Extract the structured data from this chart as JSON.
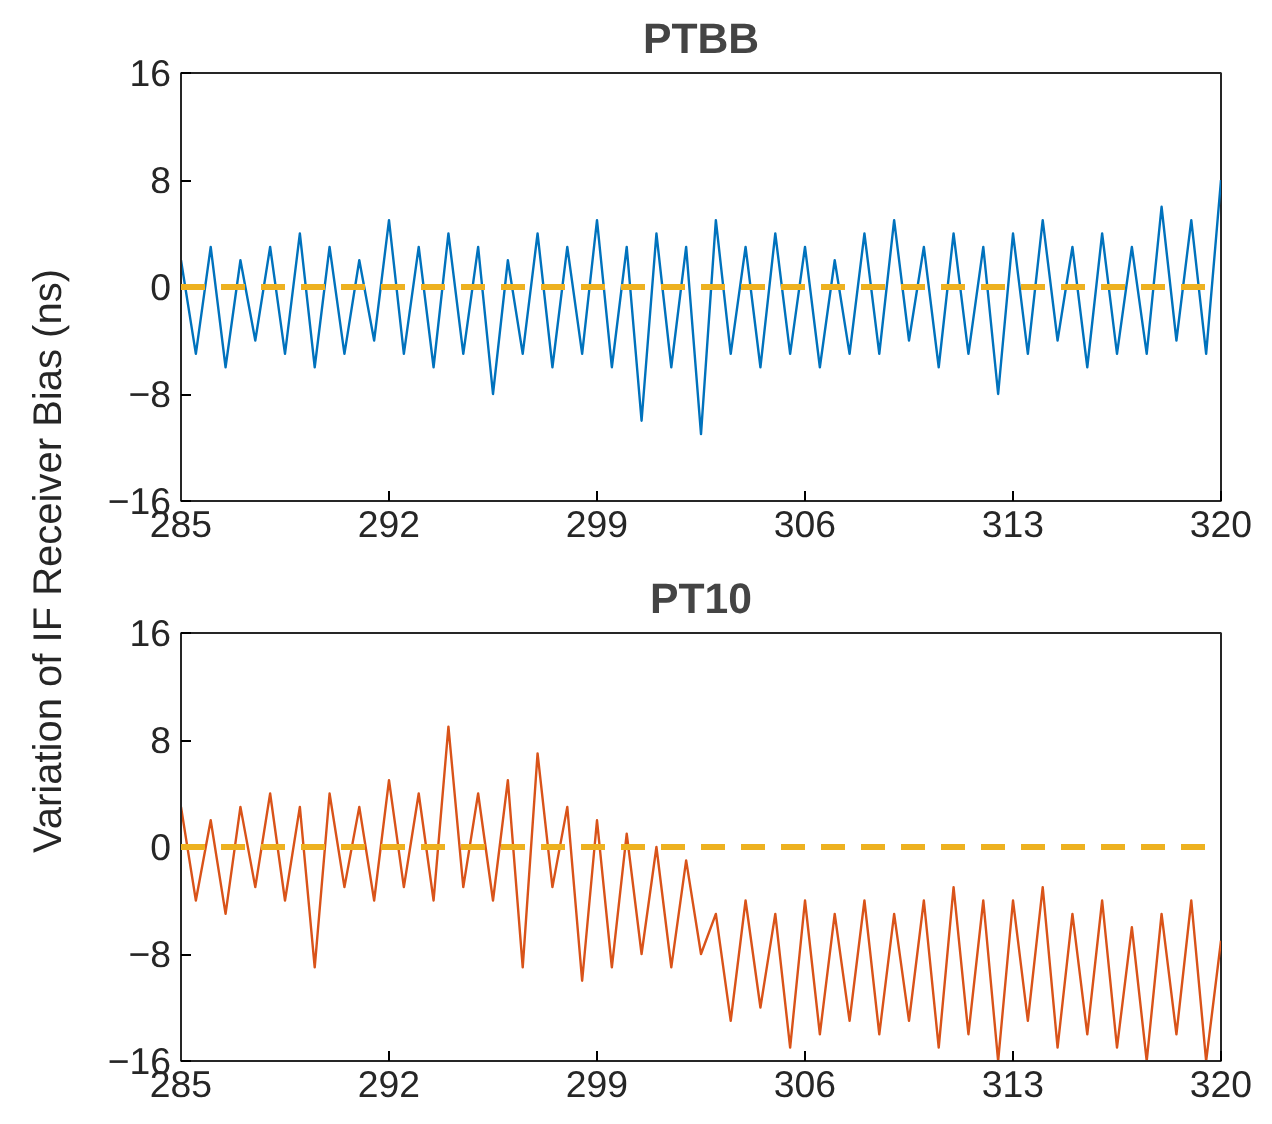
{
  "chart_data": [
    {
      "type": "line",
      "title": "PTBB",
      "ylabel": "Variation of IF Receiver Bias (ns)",
      "xlim": [
        285,
        320
      ],
      "ylim": [
        -16,
        16
      ],
      "xticks": [
        285,
        292,
        299,
        306,
        313,
        320
      ],
      "yticks": [
        -16,
        -8,
        0,
        8,
        16
      ],
      "grid": false,
      "x": [
        285,
        285.5,
        286,
        286.5,
        287,
        287.5,
        288,
        288.5,
        289,
        289.5,
        290,
        290.5,
        291,
        291.5,
        292,
        292.5,
        293,
        293.5,
        294,
        294.5,
        295,
        295.5,
        296,
        296.5,
        297,
        297.5,
        298,
        298.5,
        299,
        299.5,
        300,
        300.5,
        301,
        301.5,
        302,
        302.5,
        303,
        303.5,
        304,
        304.5,
        305,
        305.5,
        306,
        306.5,
        307,
        307.5,
        308,
        308.5,
        309,
        309.5,
        310,
        310.5,
        311,
        311.5,
        312,
        312.5,
        313,
        313.5,
        314,
        314.5,
        315,
        315.5,
        316,
        316.5,
        317,
        317.5,
        318,
        318.5,
        319,
        319.5,
        320
      ],
      "series": [
        {
          "color": "#0072bd",
          "values": [
            2,
            -5,
            3,
            -6,
            2,
            -4,
            3,
            -5,
            4,
            -6,
            3,
            -5,
            2,
            -4,
            5,
            -5,
            3,
            -6,
            4,
            -5,
            3,
            -8,
            2,
            -5,
            4,
            -6,
            3,
            -5,
            5,
            -6,
            3,
            -10,
            4,
            -6,
            3,
            -11,
            5,
            -5,
            3,
            -6,
            4,
            -5,
            3,
            -6,
            2,
            -5,
            4,
            -5,
            5,
            -4,
            3,
            -6,
            4,
            -5,
            3,
            -8,
            4,
            -5,
            5,
            -4,
            3,
            -6,
            4,
            -5,
            3,
            -5,
            6,
            -4,
            5,
            -5,
            8
          ]
        }
      ],
      "ref_lines": [
        {
          "axis": "y",
          "value": 0,
          "color": "#edb120",
          "line_style": "dashed"
        }
      ]
    },
    {
      "type": "line",
      "title": "PT10",
      "xlim": [
        285,
        320
      ],
      "ylim": [
        -16,
        16
      ],
      "xticks": [
        285,
        292,
        299,
        306,
        313,
        320
      ],
      "yticks": [
        -16,
        -8,
        0,
        8,
        16
      ],
      "grid": false,
      "x": [
        285,
        285.5,
        286,
        286.5,
        287,
        287.5,
        288,
        288.5,
        289,
        289.5,
        290,
        290.5,
        291,
        291.5,
        292,
        292.5,
        293,
        293.5,
        294,
        294.5,
        295,
        295.5,
        296,
        296.5,
        297,
        297.5,
        298,
        298.5,
        299,
        299.5,
        300,
        300.5,
        301,
        301.5,
        302,
        302.5,
        303,
        303.5,
        304,
        304.5,
        305,
        305.5,
        306,
        306.5,
        307,
        307.5,
        308,
        308.5,
        309,
        309.5,
        310,
        310.5,
        311,
        311.5,
        312,
        312.5,
        313,
        313.5,
        314,
        314.5,
        315,
        315.5,
        316,
        316.5,
        317,
        317.5,
        318,
        318.5,
        319,
        319.5,
        320
      ],
      "series": [
        {
          "color": "#d95319",
          "values": [
            3,
            -4,
            2,
            -5,
            3,
            -3,
            4,
            -4,
            3,
            -9,
            4,
            -3,
            3,
            -4,
            5,
            -3,
            4,
            -4,
            9,
            -3,
            4,
            -4,
            5,
            -9,
            7,
            -3,
            3,
            -10,
            2,
            -9,
            1,
            -8,
            0,
            -9,
            -1,
            -8,
            -5,
            -13,
            -4,
            -12,
            -5,
            -15,
            -4,
            -14,
            -5,
            -13,
            -4,
            -14,
            -5,
            -13,
            -4,
            -15,
            -3,
            -14,
            -4,
            -16,
            -4,
            -13,
            -3,
            -15,
            -5,
            -14,
            -4,
            -15,
            -6,
            -16,
            -5,
            -14,
            -4,
            -16,
            -7
          ]
        }
      ],
      "ref_lines": [
        {
          "axis": "y",
          "value": 0,
          "color": "#edb120",
          "line_style": "dashed"
        }
      ]
    }
  ]
}
